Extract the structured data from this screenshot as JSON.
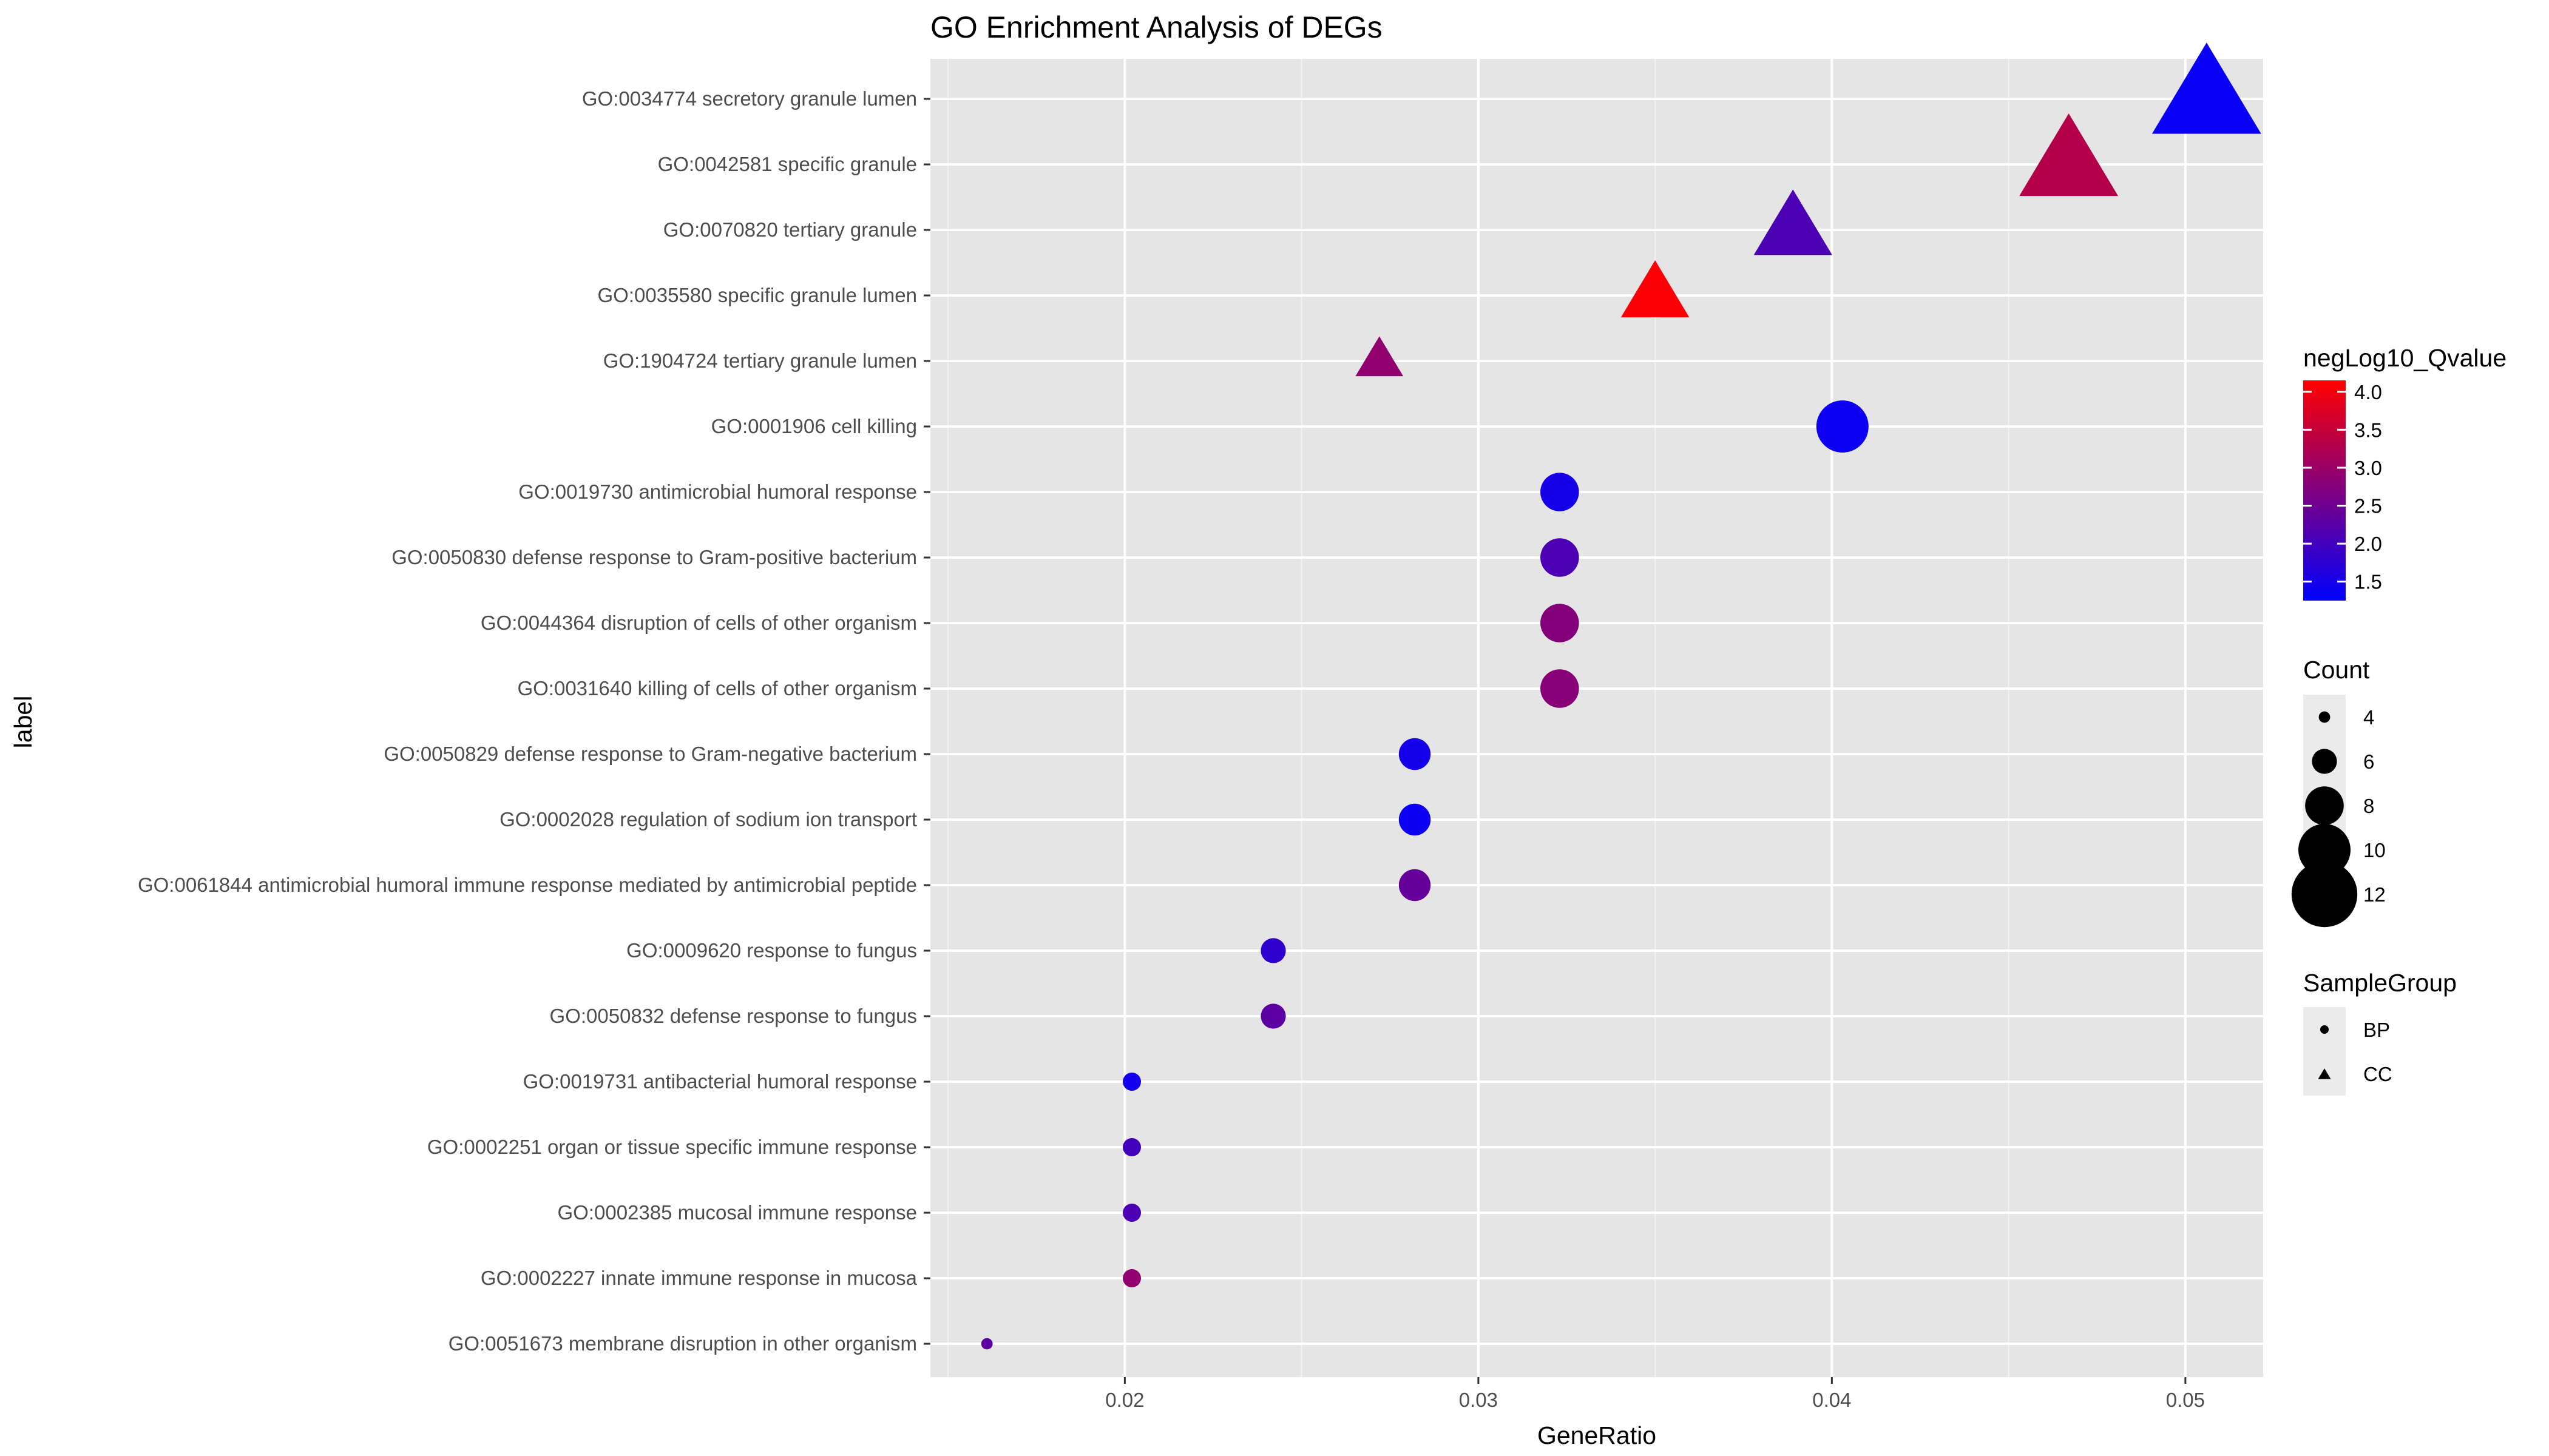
{
  "chart_data": {
    "type": "scatter",
    "title": "GO Enrichment Analysis of DEGs",
    "xlabel": "GeneRatio",
    "ylabel": "label",
    "xlim": [
      0.0145,
      0.0522
    ],
    "xticks": [
      0.02,
      0.03,
      0.04,
      0.05
    ],
    "xtick_labels": [
      "0.02",
      "0.03",
      "0.04",
      "0.05"
    ],
    "grid": true,
    "background": "#e5e5e5",
    "points": [
      {
        "label": "GO:0034774 secretory granule lumen",
        "x": 0.0506,
        "count": 13,
        "q": 1.35,
        "group": "CC"
      },
      {
        "label": "GO:0042581 specific granule",
        "x": 0.0467,
        "count": 12,
        "q": 3.3,
        "group": "CC"
      },
      {
        "label": "GO:0070820 tertiary granule",
        "x": 0.0389,
        "count": 10,
        "q": 2.1,
        "group": "CC"
      },
      {
        "label": "GO:0035580 specific granule lumen",
        "x": 0.035,
        "count": 9,
        "q": 4.1,
        "group": "CC"
      },
      {
        "label": "GO:1904724 tertiary granule lumen",
        "x": 0.0272,
        "count": 7,
        "q": 2.9,
        "group": "CC"
      },
      {
        "label": "GO:0001906 cell killing",
        "x": 0.0403,
        "count": 10,
        "q": 1.4,
        "group": "BP"
      },
      {
        "label": "GO:0019730 antimicrobial humoral response",
        "x": 0.0323,
        "count": 8,
        "q": 1.5,
        "group": "BP"
      },
      {
        "label": "GO:0050830 defense response to Gram-positive bacterium",
        "x": 0.0323,
        "count": 8,
        "q": 2.1,
        "group": "BP"
      },
      {
        "label": "GO:0044364 disruption of cells of other organism",
        "x": 0.0323,
        "count": 8,
        "q": 2.75,
        "group": "BP"
      },
      {
        "label": "GO:0031640 killing of cells of other organism",
        "x": 0.0323,
        "count": 8,
        "q": 2.8,
        "group": "BP"
      },
      {
        "label": "GO:0050829 defense response to Gram-negative bacterium",
        "x": 0.0282,
        "count": 7,
        "q": 1.5,
        "group": "BP"
      },
      {
        "label": "GO:0002028 regulation of sodium ion transport",
        "x": 0.0282,
        "count": 7,
        "q": 1.4,
        "group": "BP"
      },
      {
        "label": "GO:0061844 antimicrobial humoral immune response mediated by antimicrobial peptide",
        "x": 0.0282,
        "count": 7,
        "q": 2.4,
        "group": "BP"
      },
      {
        "label": "GO:0009620 response to fungus",
        "x": 0.0242,
        "count": 6,
        "q": 1.8,
        "group": "BP"
      },
      {
        "label": "GO:0050832 defense response to fungus",
        "x": 0.0242,
        "count": 6,
        "q": 2.3,
        "group": "BP"
      },
      {
        "label": "GO:0019731 antibacterial humoral response",
        "x": 0.0202,
        "count": 5,
        "q": 1.45,
        "group": "BP"
      },
      {
        "label": "GO:0002251 organ or tissue specific immune response",
        "x": 0.0202,
        "count": 5,
        "q": 2.0,
        "group": "BP"
      },
      {
        "label": "GO:0002385 mucosal immune response",
        "x": 0.0202,
        "count": 5,
        "q": 2.1,
        "group": "BP"
      },
      {
        "label": "GO:0002227 innate immune response in mucosa",
        "x": 0.0202,
        "count": 5,
        "q": 2.9,
        "group": "BP"
      },
      {
        "label": "GO:0051673 membrane disruption in other organism",
        "x": 0.0161,
        "count": 4,
        "q": 2.3,
        "group": "BP"
      }
    ],
    "color_legend": {
      "title": "negLog10_Qvalue",
      "range": [
        1.25,
        4.15
      ],
      "ticks": [
        1.5,
        2.0,
        2.5,
        3.0,
        3.5,
        4.0
      ],
      "tick_labels": [
        "1.5",
        "2.0",
        "2.5",
        "3.0",
        "3.5",
        "4.0"
      ],
      "low_color": "#0000ff",
      "high_color": "#ff0000"
    },
    "size_legend": {
      "title": "Count",
      "values": [
        4,
        6,
        8,
        10,
        12
      ],
      "labels": [
        "4",
        "6",
        "8",
        "10",
        "12"
      ]
    },
    "shape_legend": {
      "title": "SampleGroup",
      "items": [
        {
          "label": "BP",
          "shape": "circle"
        },
        {
          "label": "CC",
          "shape": "triangle"
        }
      ]
    }
  }
}
